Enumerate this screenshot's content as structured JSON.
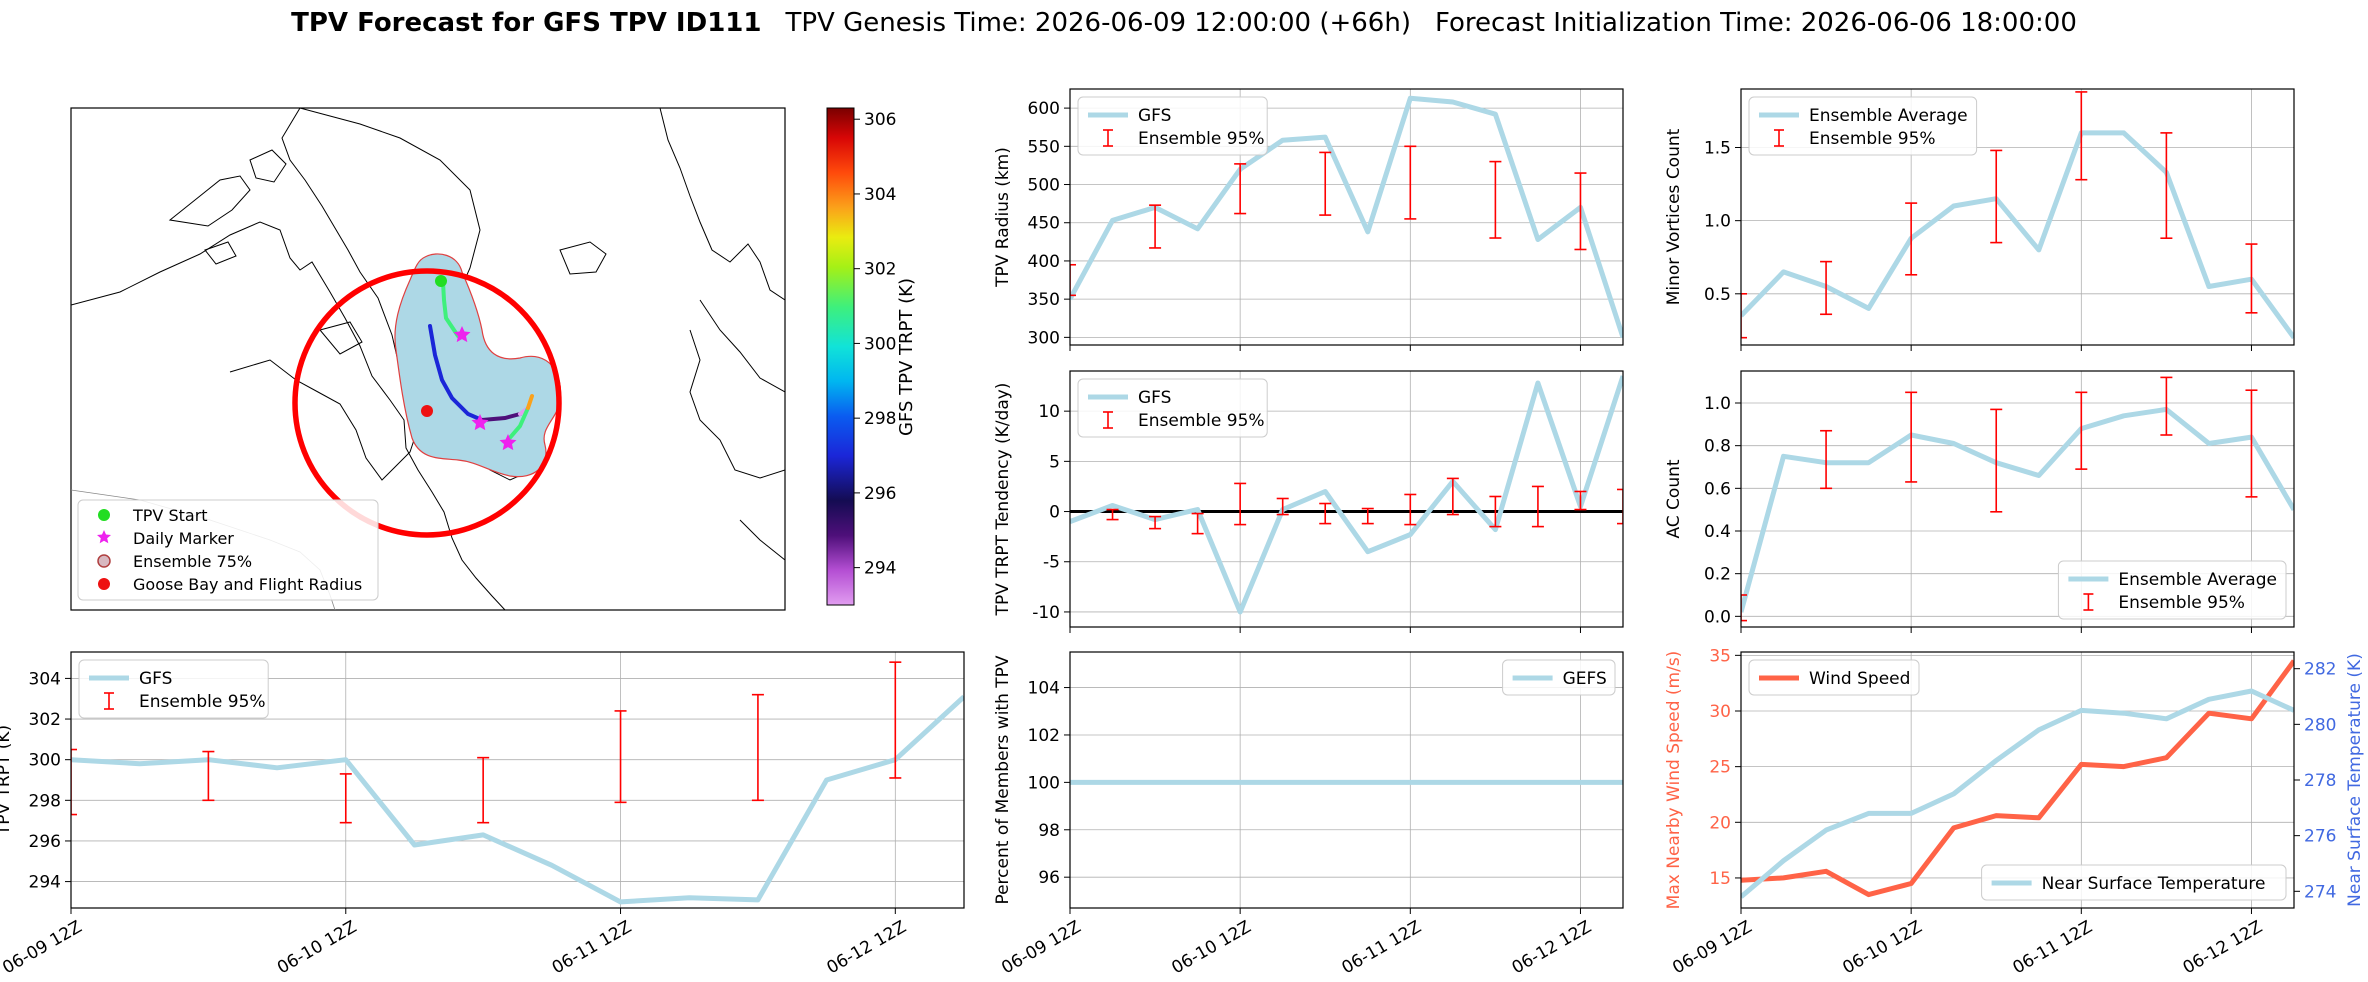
{
  "title": {
    "bold": "TPV Forecast for GFS TPV ID111",
    "genesis": "TPV Genesis Time: 2026-06-09 12:00:00 (+66h)",
    "init": "Forecast Initialization Time: 2026-06-06 18:00:00"
  },
  "colors": {
    "gfs_line": "#add8e6",
    "error_bar": "#ff0000",
    "wind_line": "#ff6347",
    "temp_axis": "#4169e1",
    "track_circle": "#ff0000"
  },
  "map": {
    "colorbar_label": "GFS TPV TRPT (K)",
    "colorbar_ticks": [
      "294",
      "296",
      "298",
      "300",
      "302",
      "304",
      "306"
    ],
    "colorbar_range": [
      293.0,
      306.3
    ],
    "legend": {
      "start": "TPV Start",
      "daily": "Daily Marker",
      "ens75": "Ensemble 75%",
      "goose": "Goose Bay and Flight Radius"
    }
  },
  "x_ticks": [
    "06-09 12Z",
    "06-10 12Z",
    "06-11 12Z",
    "06-12 12Z"
  ],
  "chart_data": [
    {
      "id": "radius",
      "type": "line",
      "ylabel": "TPV Radius (km)",
      "ylim": [
        290,
        625
      ],
      "yticks": [
        300,
        350,
        400,
        450,
        500,
        550,
        600
      ],
      "legend": [
        "GFS",
        "Ensemble 95%"
      ],
      "legend_pos": "top-left",
      "x": [
        0,
        1,
        2,
        3,
        4,
        5,
        6,
        7,
        8,
        9,
        10,
        11,
        12,
        13
      ],
      "values": [
        350,
        453,
        470,
        442,
        520,
        558,
        562,
        438,
        613,
        608,
        592,
        428,
        470,
        300
      ],
      "errorbars": [
        {
          "x": 0,
          "low": 355,
          "high": 395
        },
        {
          "x": 2,
          "low": 417,
          "high": 473
        },
        {
          "x": 4,
          "low": 462,
          "high": 527
        },
        {
          "x": 6,
          "low": 460,
          "high": 542
        },
        {
          "x": 8,
          "low": 455,
          "high": 550
        },
        {
          "x": 10,
          "low": 430,
          "high": 530
        },
        {
          "x": 12,
          "low": 415,
          "high": 515
        }
      ]
    },
    {
      "id": "minor",
      "type": "line",
      "ylabel": "Minor Vortices Count",
      "ylim": [
        0.15,
        1.9
      ],
      "yticks": [
        0.5,
        1.0,
        1.5
      ],
      "legend": [
        "Ensemble Average",
        "Ensemble 95%"
      ],
      "legend_pos": "top-left",
      "x": [
        0,
        1,
        2,
        3,
        4,
        5,
        6,
        7,
        8,
        9,
        10,
        11,
        12,
        13
      ],
      "values": [
        0.35,
        0.65,
        0.55,
        0.4,
        0.88,
        1.1,
        1.15,
        0.8,
        1.6,
        1.6,
        1.33,
        0.55,
        0.6,
        0.2
      ],
      "errorbars": [
        {
          "x": 0,
          "low": 0.2,
          "high": 0.5
        },
        {
          "x": 2,
          "low": 0.36,
          "high": 0.72
        },
        {
          "x": 4,
          "low": 0.63,
          "high": 1.12
        },
        {
          "x": 6,
          "low": 0.85,
          "high": 1.48
        },
        {
          "x": 8,
          "low": 1.28,
          "high": 1.88
        },
        {
          "x": 10,
          "low": 0.88,
          "high": 1.6
        },
        {
          "x": 12,
          "low": 0.37,
          "high": 0.84
        }
      ]
    },
    {
      "id": "tendency",
      "type": "line",
      "ylabel": "TPV TRPT Tendency (K/day)",
      "ylim": [
        -11.5,
        14
      ],
      "yticks": [
        -10,
        -5,
        0,
        5,
        10
      ],
      "legend": [
        "GFS",
        "Ensemble 95%"
      ],
      "legend_pos": "top-left",
      "x": [
        0,
        1,
        2,
        3,
        4,
        5,
        6,
        7,
        8,
        9,
        10,
        11,
        12,
        13
      ],
      "values": [
        -1.0,
        0.6,
        -0.8,
        0.2,
        -10.0,
        0.2,
        2.0,
        -4.0,
        -2.3,
        3.0,
        -1.8,
        12.8,
        0.5,
        13.5
      ],
      "errorbars": [
        {
          "x": 1,
          "low": -0.8,
          "high": 0.2
        },
        {
          "x": 2,
          "low": -1.7,
          "high": -0.5
        },
        {
          "x": 3,
          "low": -2.2,
          "high": -0.2
        },
        {
          "x": 4,
          "low": -1.3,
          "high": 2.8
        },
        {
          "x": 5,
          "low": -0.3,
          "high": 1.3
        },
        {
          "x": 6,
          "low": -1.2,
          "high": 0.8
        },
        {
          "x": 7,
          "low": -1.2,
          "high": 0.3
        },
        {
          "x": 8,
          "low": -1.3,
          "high": 1.7
        },
        {
          "x": 9,
          "low": -0.3,
          "high": 3.3
        },
        {
          "x": 10,
          "low": -1.5,
          "high": 1.5
        },
        {
          "x": 11,
          "low": -1.5,
          "high": 2.5
        },
        {
          "x": 12,
          "low": 0.2,
          "high": 2.0
        },
        {
          "x": 13,
          "low": -1.2,
          "high": 2.2
        }
      ],
      "zero_line": true
    },
    {
      "id": "ac",
      "type": "line",
      "ylabel": "AC Count",
      "ylim": [
        -0.05,
        1.15
      ],
      "yticks": [
        0.0,
        0.2,
        0.4,
        0.6,
        0.8,
        1.0
      ],
      "legend": [
        "Ensemble Average",
        "Ensemble 95%"
      ],
      "legend_pos": "bottom-right",
      "x": [
        0,
        1,
        2,
        3,
        4,
        5,
        6,
        7,
        8,
        9,
        10,
        11,
        12,
        13
      ],
      "values": [
        0.02,
        0.75,
        0.72,
        0.72,
        0.85,
        0.81,
        0.72,
        0.66,
        0.88,
        0.94,
        0.97,
        0.81,
        0.84,
        0.5
      ],
      "errorbars": [
        {
          "x": 0,
          "low": -0.02,
          "high": 0.1
        },
        {
          "x": 2,
          "low": 0.6,
          "high": 0.87
        },
        {
          "x": 4,
          "low": 0.63,
          "high": 1.05
        },
        {
          "x": 6,
          "low": 0.49,
          "high": 0.97
        },
        {
          "x": 8,
          "low": 0.69,
          "high": 1.05
        },
        {
          "x": 10,
          "low": 0.85,
          "high": 1.12
        },
        {
          "x": 12,
          "low": 0.56,
          "high": 1.06
        }
      ]
    },
    {
      "id": "trpt",
      "type": "line",
      "ylabel": "TPV TRPT (K)",
      "ylim": [
        292.7,
        305.3
      ],
      "yticks": [
        294,
        296,
        298,
        300,
        302,
        304
      ],
      "legend": [
        "GFS",
        "Ensemble 95%"
      ],
      "legend_pos": "top-left",
      "x": [
        0,
        1,
        2,
        3,
        4,
        5,
        6,
        7,
        8,
        9,
        10,
        11,
        12,
        13
      ],
      "values": [
        300.0,
        299.8,
        300.0,
        299.6,
        300.0,
        295.8,
        296.3,
        294.8,
        293.0,
        293.2,
        293.1,
        299.0,
        300.0,
        303.1
      ],
      "errorbars": [
        {
          "x": 0,
          "low": 297.3,
          "high": 300.5
        },
        {
          "x": 2,
          "low": 298.0,
          "high": 300.4
        },
        {
          "x": 4,
          "low": 296.9,
          "high": 299.3
        },
        {
          "x": 6,
          "low": 296.9,
          "high": 300.1
        },
        {
          "x": 8,
          "low": 297.9,
          "high": 302.4
        },
        {
          "x": 10,
          "low": 298.0,
          "high": 303.2
        },
        {
          "x": 12,
          "low": 299.1,
          "high": 304.8
        }
      ]
    },
    {
      "id": "percent",
      "type": "line",
      "ylabel": "Percent of Members with TPV",
      "ylim": [
        94.7,
        105.5
      ],
      "yticks": [
        96,
        98,
        100,
        102,
        104
      ],
      "legend": [
        "GEFS"
      ],
      "legend_pos": "top-right",
      "x": [
        0,
        1,
        2,
        3,
        4,
        5,
        6,
        7,
        8,
        9,
        10,
        11,
        12,
        13
      ],
      "values": [
        100,
        100,
        100,
        100,
        100,
        100,
        100,
        100,
        100,
        100,
        100,
        100,
        100,
        100
      ]
    },
    {
      "id": "wind_temp",
      "type": "line",
      "ylabel": "Max Nearby Wind Speed (m/s)",
      "ylabel2": "Near Surface Temperature (K)",
      "ylim": [
        12.3,
        35.3
      ],
      "yticks": [
        15,
        20,
        25,
        30,
        35
      ],
      "ylim2": [
        273.4,
        282.6
      ],
      "yticks2": [
        274,
        276,
        278,
        280,
        282
      ],
      "legend": [
        "Wind Speed"
      ],
      "legend2": [
        "Near Surface Temperature"
      ],
      "x": [
        0,
        1,
        2,
        3,
        4,
        5,
        6,
        7,
        8,
        9,
        10,
        11,
        12,
        13
      ],
      "series": [
        {
          "name": "Wind Speed",
          "axis": "left",
          "values": [
            14.8,
            15.0,
            15.6,
            13.5,
            14.5,
            19.5,
            20.6,
            20.4,
            25.2,
            25.0,
            25.8,
            29.8,
            29.3,
            34.5
          ]
        },
        {
          "name": "Near Surface Temperature",
          "axis": "right",
          "values": [
            273.8,
            275.1,
            276.2,
            276.8,
            276.8,
            277.5,
            278.7,
            279.8,
            280.5,
            280.4,
            280.2,
            280.9,
            281.2,
            280.5
          ]
        }
      ]
    }
  ]
}
